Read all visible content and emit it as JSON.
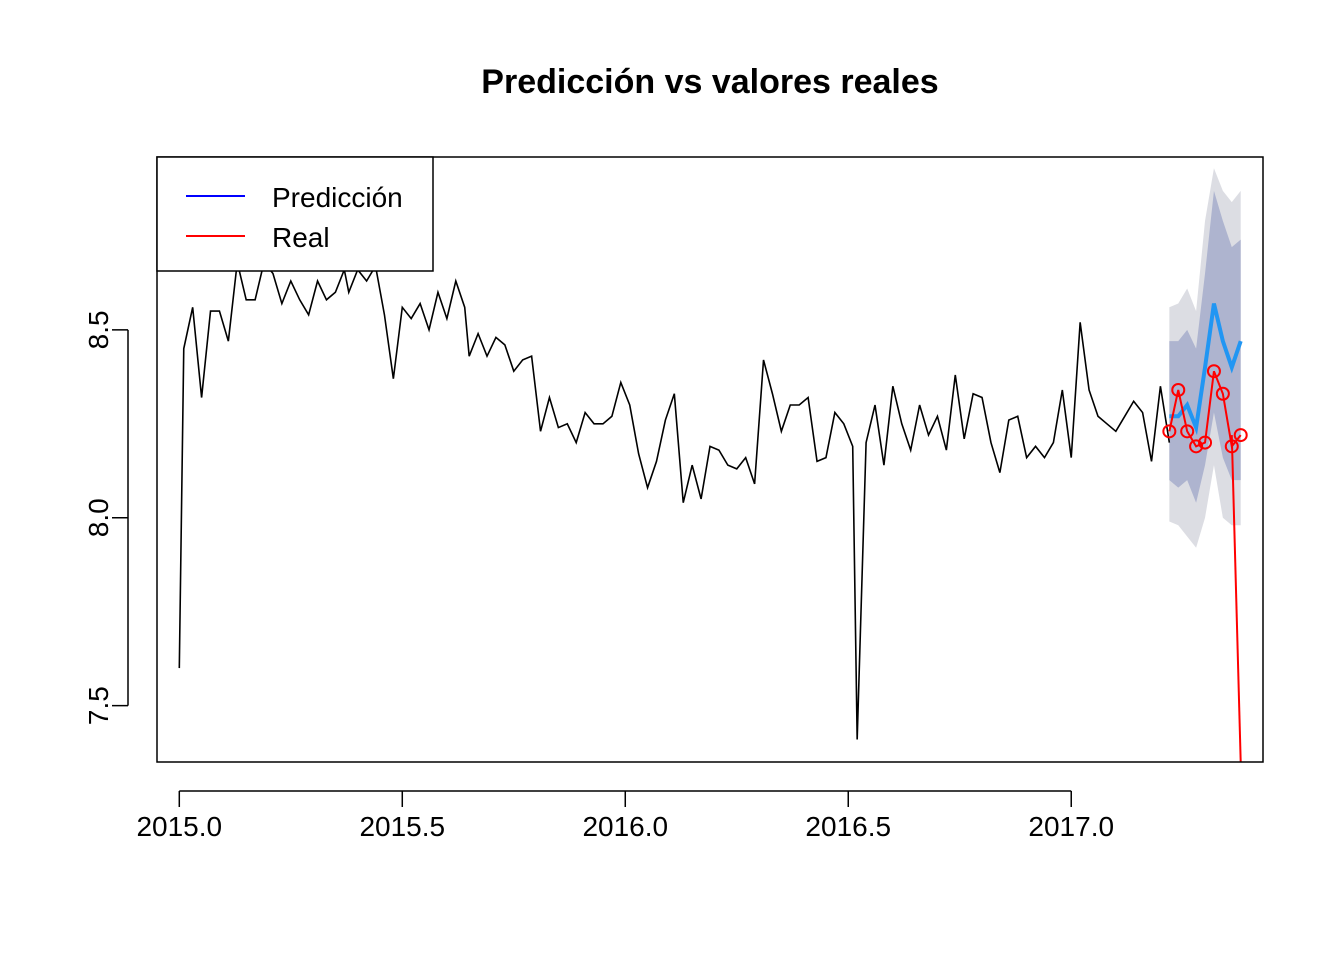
{
  "chart_data": {
    "type": "line",
    "title": "Predicción vs valores reales",
    "xlabel": "",
    "ylabel": "",
    "xlim": [
      2014.95,
      2017.43
    ],
    "ylim": [
      7.35,
      8.96
    ],
    "x_ticks": [
      {
        "value": 2015.0,
        "label": "2015.0"
      },
      {
        "value": 2015.5,
        "label": "2015.5"
      },
      {
        "value": 2016.0,
        "label": "2016.0"
      },
      {
        "value": 2016.5,
        "label": "2016.5"
      },
      {
        "value": 2017.0,
        "label": "2017.0"
      }
    ],
    "y_ticks": [
      {
        "value": 7.5,
        "label": "7.5"
      },
      {
        "value": 8.0,
        "label": "8.0"
      },
      {
        "value": 8.5,
        "label": "8.5"
      }
    ],
    "grid": false,
    "legend": {
      "position": "top-left",
      "entries": [
        {
          "label": "Predicción",
          "color": "#0000ff"
        },
        {
          "label": "Real",
          "color": "#ff0000"
        }
      ]
    },
    "series": [
      {
        "color": "#000000",
        "role": "history",
        "points": [
          [
            2015.0,
            7.6
          ],
          [
            2015.01,
            8.45
          ],
          [
            2015.03,
            8.56
          ],
          [
            2015.05,
            8.32
          ],
          [
            2015.07,
            8.55
          ],
          [
            2015.09,
            8.55
          ],
          [
            2015.11,
            8.47
          ],
          [
            2015.13,
            8.68
          ],
          [
            2015.15,
            8.58
          ],
          [
            2015.17,
            8.58
          ],
          [
            2015.19,
            8.68
          ],
          [
            2015.21,
            8.65
          ],
          [
            2015.23,
            8.57
          ],
          [
            2015.25,
            8.63
          ],
          [
            2015.27,
            8.58
          ],
          [
            2015.29,
            8.54
          ],
          [
            2015.31,
            8.63
          ],
          [
            2015.33,
            8.58
          ],
          [
            2015.35,
            8.6
          ],
          [
            2015.37,
            8.66
          ],
          [
            2015.38,
            8.6
          ],
          [
            2015.4,
            8.66
          ],
          [
            2015.42,
            8.63
          ],
          [
            2015.44,
            8.67
          ],
          [
            2015.46,
            8.54
          ],
          [
            2015.48,
            8.37
          ],
          [
            2015.5,
            8.56
          ],
          [
            2015.52,
            8.53
          ],
          [
            2015.54,
            8.57
          ],
          [
            2015.56,
            8.5
          ],
          [
            2015.58,
            8.6
          ],
          [
            2015.6,
            8.53
          ],
          [
            2015.62,
            8.63
          ],
          [
            2015.64,
            8.56
          ],
          [
            2015.65,
            8.43
          ],
          [
            2015.67,
            8.49
          ],
          [
            2015.69,
            8.43
          ],
          [
            2015.71,
            8.48
          ],
          [
            2015.73,
            8.46
          ],
          [
            2015.75,
            8.39
          ],
          [
            2015.77,
            8.42
          ],
          [
            2015.79,
            8.43
          ],
          [
            2015.81,
            8.23
          ],
          [
            2015.83,
            8.32
          ],
          [
            2015.85,
            8.24
          ],
          [
            2015.87,
            8.25
          ],
          [
            2015.89,
            8.2
          ],
          [
            2015.91,
            8.28
          ],
          [
            2015.93,
            8.25
          ],
          [
            2015.95,
            8.25
          ],
          [
            2015.97,
            8.27
          ],
          [
            2015.99,
            8.36
          ],
          [
            2016.01,
            8.3
          ],
          [
            2016.03,
            8.17
          ],
          [
            2016.05,
            8.08
          ],
          [
            2016.07,
            8.15
          ],
          [
            2016.09,
            8.26
          ],
          [
            2016.11,
            8.33
          ],
          [
            2016.13,
            8.04
          ],
          [
            2016.15,
            8.14
          ],
          [
            2016.17,
            8.05
          ],
          [
            2016.19,
            8.19
          ],
          [
            2016.21,
            8.18
          ],
          [
            2016.23,
            8.14
          ],
          [
            2016.25,
            8.13
          ],
          [
            2016.27,
            8.16
          ],
          [
            2016.29,
            8.09
          ],
          [
            2016.31,
            8.42
          ],
          [
            2016.33,
            8.33
          ],
          [
            2016.35,
            8.23
          ],
          [
            2016.37,
            8.3
          ],
          [
            2016.39,
            8.3
          ],
          [
            2016.41,
            8.32
          ],
          [
            2016.43,
            8.15
          ],
          [
            2016.45,
            8.16
          ],
          [
            2016.47,
            8.28
          ],
          [
            2016.49,
            8.25
          ],
          [
            2016.51,
            8.19
          ],
          [
            2016.52,
            7.41
          ],
          [
            2016.54,
            8.2
          ],
          [
            2016.56,
            8.3
          ],
          [
            2016.58,
            8.14
          ],
          [
            2016.6,
            8.35
          ],
          [
            2016.62,
            8.25
          ],
          [
            2016.64,
            8.18
          ],
          [
            2016.66,
            8.3
          ],
          [
            2016.68,
            8.22
          ],
          [
            2016.7,
            8.27
          ],
          [
            2016.72,
            8.18
          ],
          [
            2016.74,
            8.38
          ],
          [
            2016.76,
            8.21
          ],
          [
            2016.78,
            8.33
          ],
          [
            2016.8,
            8.32
          ],
          [
            2016.82,
            8.2
          ],
          [
            2016.84,
            8.12
          ],
          [
            2016.86,
            8.26
          ],
          [
            2016.88,
            8.27
          ],
          [
            2016.9,
            8.16
          ],
          [
            2016.92,
            8.19
          ],
          [
            2016.94,
            8.16
          ],
          [
            2016.96,
            8.2
          ],
          [
            2016.98,
            8.34
          ],
          [
            2017.0,
            8.16
          ],
          [
            2017.02,
            8.52
          ],
          [
            2017.04,
            8.34
          ],
          [
            2017.06,
            8.27
          ],
          [
            2017.08,
            8.25
          ],
          [
            2017.1,
            8.23
          ],
          [
            2017.12,
            8.27
          ],
          [
            2017.14,
            8.31
          ],
          [
            2017.16,
            8.28
          ],
          [
            2017.18,
            8.15
          ],
          [
            2017.2,
            8.35
          ],
          [
            2017.22,
            8.2
          ]
        ]
      },
      {
        "name": "Predicción",
        "color": "#2196f3",
        "role": "forecast",
        "x": [
          2017.22,
          2017.24,
          2017.26,
          2017.28,
          2017.3,
          2017.32,
          2017.34,
          2017.36,
          2017.38
        ],
        "values": [
          8.27,
          8.27,
          8.3,
          8.24,
          8.4,
          8.57,
          8.47,
          8.4,
          8.47
        ],
        "band80": {
          "lower": [
            8.1,
            8.08,
            8.1,
            8.04,
            8.14,
            8.28,
            8.16,
            8.1,
            8.1
          ],
          "upper": [
            8.47,
            8.47,
            8.5,
            8.45,
            8.65,
            8.87,
            8.79,
            8.72,
            8.74
          ]
        },
        "band95": {
          "lower": [
            7.99,
            7.98,
            7.95,
            7.92,
            8.0,
            8.14,
            8.0,
            7.98,
            7.98
          ],
          "upper": [
            8.56,
            8.57,
            8.61,
            8.55,
            8.79,
            8.93,
            8.87,
            8.84,
            8.87
          ]
        }
      },
      {
        "name": "Real",
        "color": "#ff0000",
        "role": "actual",
        "x": [
          2017.22,
          2017.24,
          2017.26,
          2017.28,
          2017.3,
          2017.32,
          2017.34,
          2017.36,
          2017.38,
          2017.4,
          2017.42
        ],
        "values": [
          8.23,
          8.34,
          8.23,
          8.19,
          8.2,
          8.39,
          8.33,
          8.19,
          8.22,
          null,
          null
        ],
        "tail": [
          [
            2017.36,
            8.22
          ],
          [
            2017.38,
            7.35
          ]
        ]
      }
    ]
  }
}
